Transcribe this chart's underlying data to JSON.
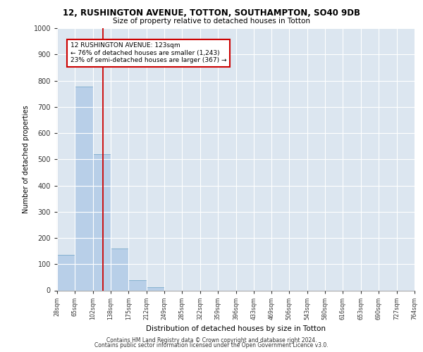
{
  "title_line1": "12, RUSHINGTON AVENUE, TOTTON, SOUTHAMPTON, SO40 9DB",
  "title_line2": "Size of property relative to detached houses in Totton",
  "xlabel": "Distribution of detached houses by size in Totton",
  "ylabel": "Number of detached properties",
  "bar_color": "#b8cfe8",
  "bar_edge_color": "#7aaacb",
  "bg_color": "#dce6f0",
  "grid_color": "#ffffff",
  "bins": [
    28,
    65,
    102,
    138,
    175,
    212,
    249,
    285,
    322,
    359,
    396,
    433,
    469,
    506,
    543,
    580,
    616,
    653,
    690,
    727,
    764
  ],
  "values": [
    135,
    778,
    520,
    160,
    40,
    12,
    0,
    0,
    0,
    0,
    0,
    0,
    0,
    0,
    0,
    0,
    0,
    0,
    0,
    0
  ],
  "property_size": 123,
  "vline_color": "#cc0000",
  "annotation_text": "12 RUSHINGTON AVENUE: 123sqm\n← 76% of detached houses are smaller (1,243)\n23% of semi-detached houses are larger (367) →",
  "annotation_box_color": "#ffffff",
  "annotation_box_edge": "#cc0000",
  "footer_line1": "Contains HM Land Registry data © Crown copyright and database right 2024.",
  "footer_line2": "Contains public sector information licensed under the Open Government Licence v3.0.",
  "ylim": [
    0,
    1000
  ],
  "yticks": [
    0,
    100,
    200,
    300,
    400,
    500,
    600,
    700,
    800,
    900,
    1000
  ]
}
